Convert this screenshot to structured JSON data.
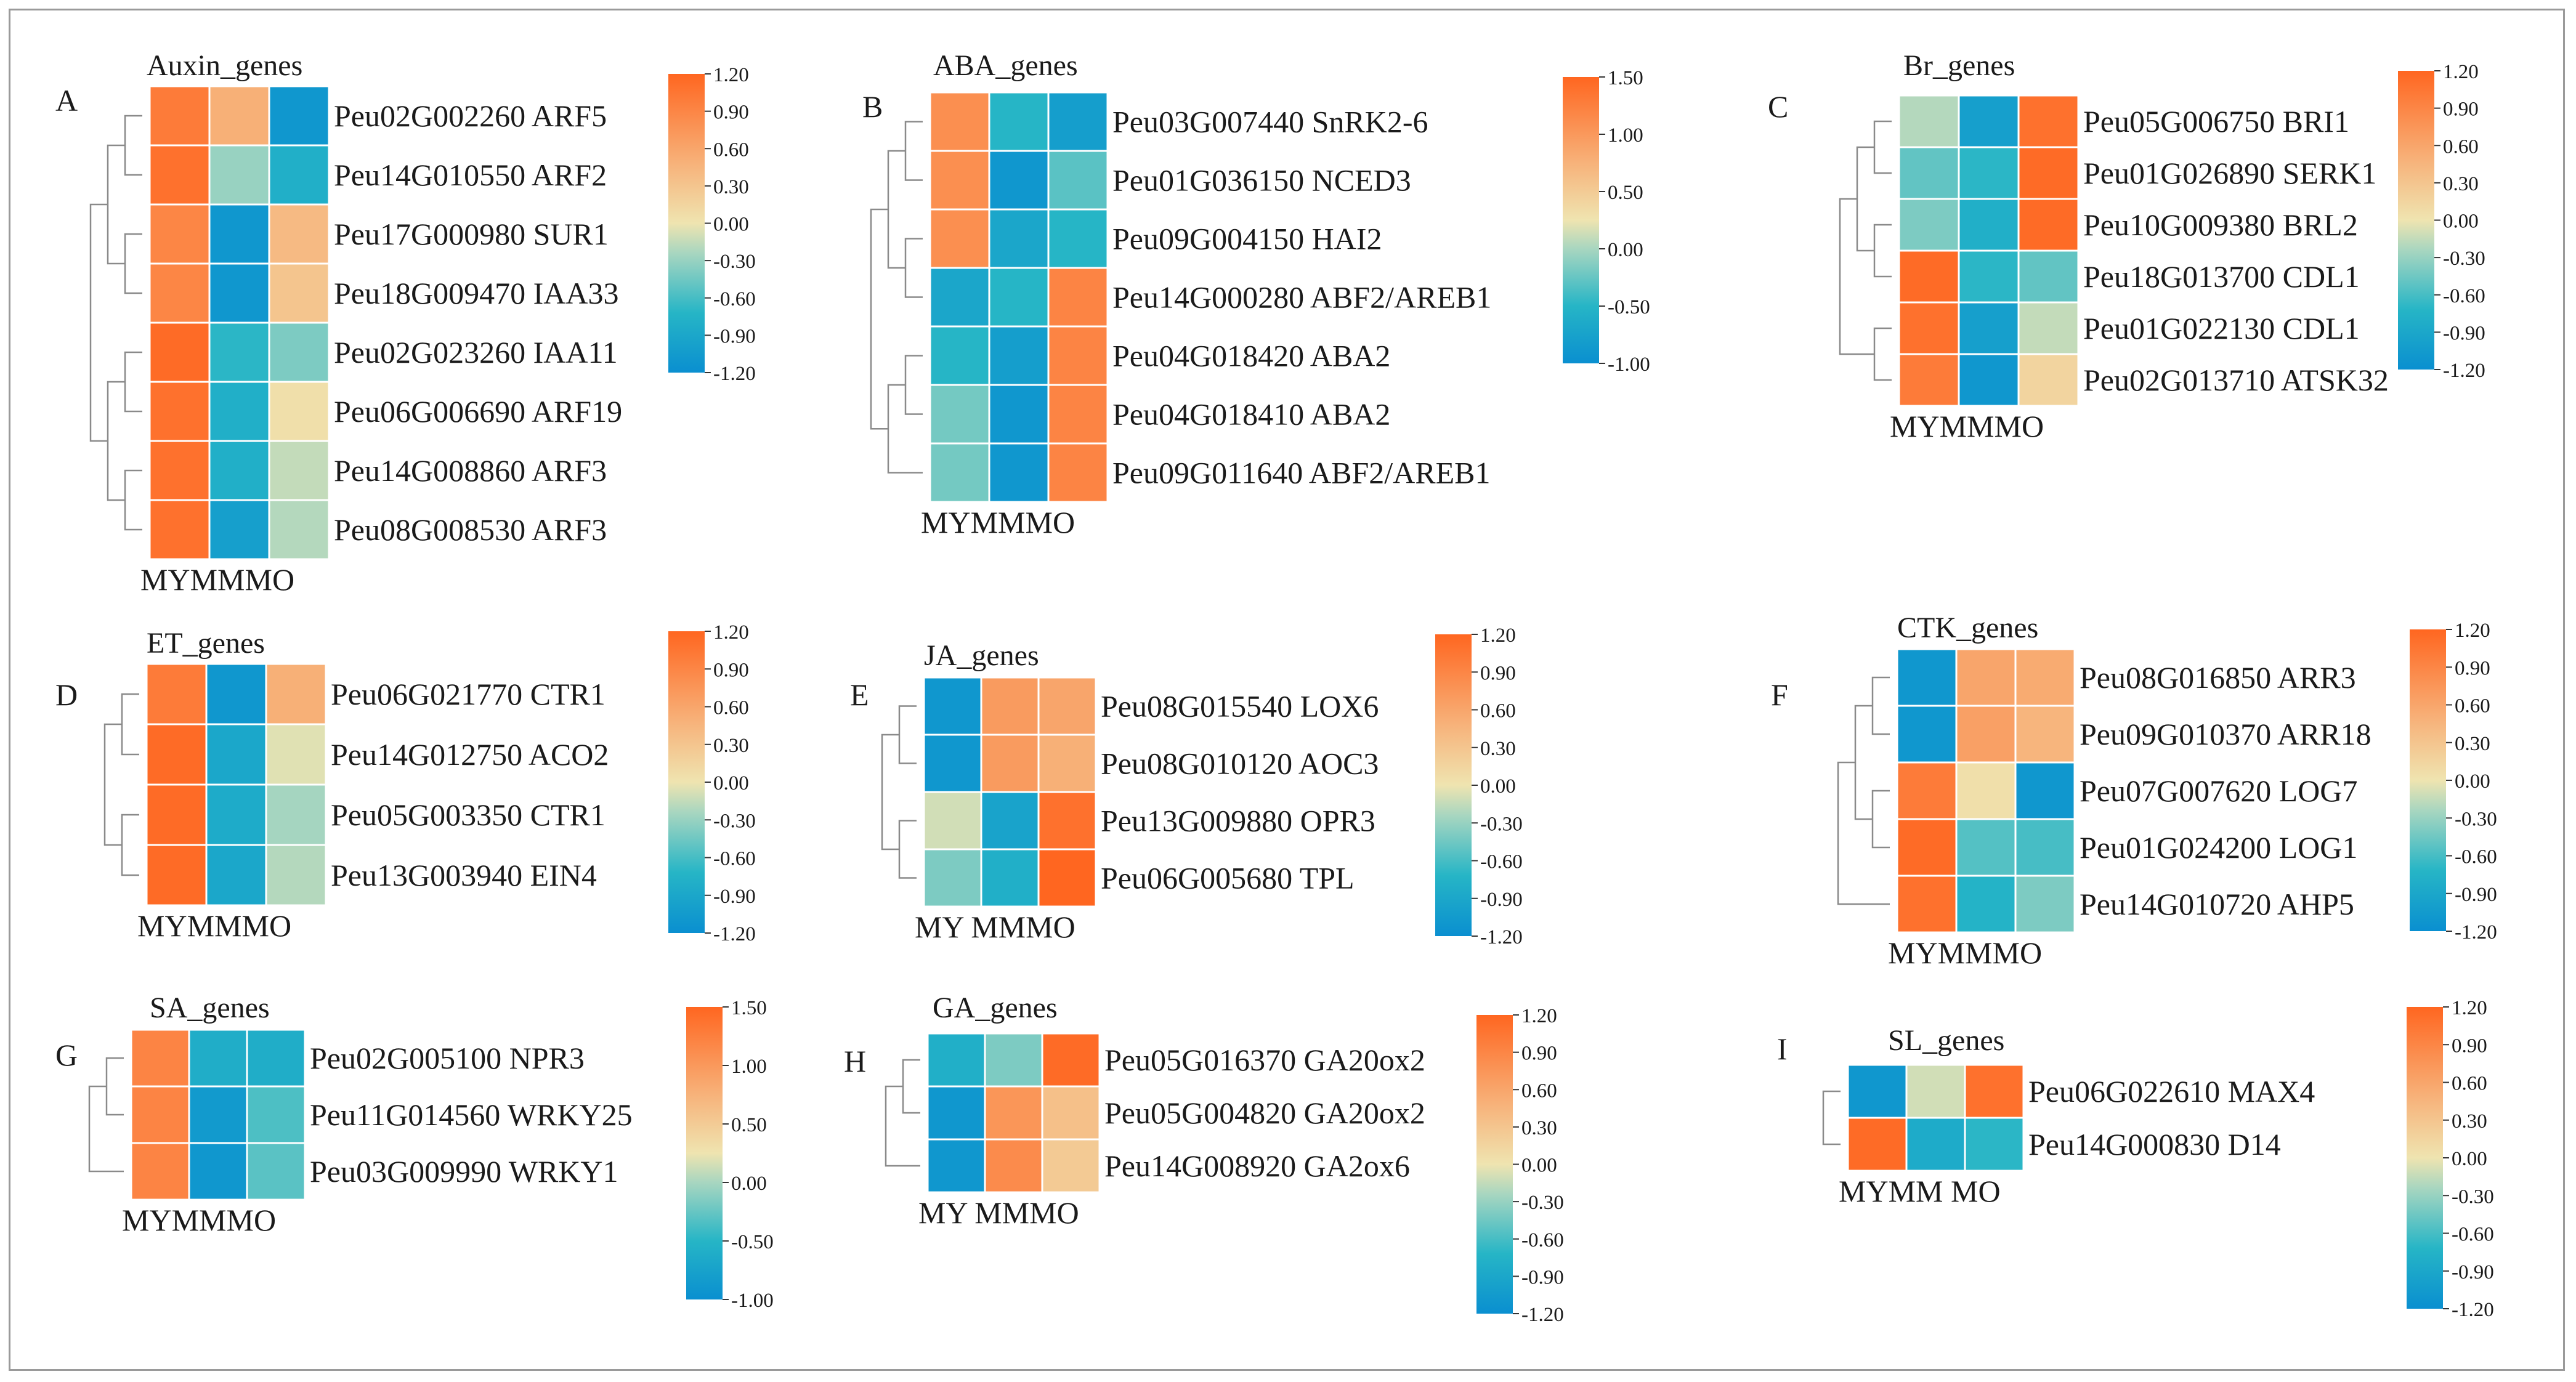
{
  "figure": {
    "colorscale": [
      "#0a8fd0",
      "#26b5c6",
      "#a8d6c0",
      "#efe4b0",
      "#f7b27a",
      "#ff6620"
    ]
  },
  "chart_data": [
    {
      "type": "heatmap",
      "panel": "A",
      "title": "Auxin_genes",
      "columns": [
        "MY",
        "MM",
        "MO"
      ],
      "rows": [
        "Peu02G002260 ARF5",
        "Peu14G010550 ARF2",
        "Peu17G000980 SUR1",
        "Peu18G009470 IAA33",
        "Peu02G023260 IAA11",
        "Peu06G006690 ARF19",
        "Peu14G008860 ARF3",
        "Peu08G008530 ARF3"
      ],
      "values": [
        [
          1.0,
          0.5,
          -1.1
        ],
        [
          1.1,
          -0.3,
          -0.8
        ],
        [
          0.9,
          -1.1,
          0.4
        ],
        [
          0.9,
          -1.1,
          0.3
        ],
        [
          1.15,
          -0.7,
          -0.4
        ],
        [
          1.1,
          -0.8,
          0.05
        ],
        [
          1.1,
          -0.8,
          -0.15
        ],
        [
          1.1,
          -1.0,
          -0.2
        ]
      ],
      "colorbar": {
        "range": [
          -1.2,
          1.2
        ],
        "ticks": [
          "1.20",
          "0.90",
          "0.60",
          "0.30",
          "0.00",
          "-0.30",
          "-0.60",
          "-0.90",
          "-1.20"
        ]
      },
      "column_label_text": "MYMMMO"
    },
    {
      "type": "heatmap",
      "panel": "B",
      "title": "ABA_genes",
      "columns": [
        "MY",
        "MM",
        "MO"
      ],
      "rows": [
        "Peu03G007440 SnRK2-6",
        "Peu01G036150 NCED3",
        "Peu09G004150 HAI2",
        "Peu14G000280 ABF2/AREB1",
        "Peu04G018420 ABA2",
        "Peu04G018410 ABA2",
        "Peu09G011640 ABF2/AREB1"
      ],
      "values": [
        [
          1.1,
          -0.5,
          -0.8
        ],
        [
          1.1,
          -0.9,
          -0.3
        ],
        [
          1.1,
          -0.7,
          -0.5
        ],
        [
          -0.7,
          -0.5,
          1.2
        ],
        [
          -0.5,
          -0.8,
          1.2
        ],
        [
          -0.2,
          -0.9,
          1.2
        ],
        [
          -0.2,
          -0.9,
          1.2
        ]
      ],
      "colorbar": {
        "range": [
          -1.0,
          1.5
        ],
        "ticks": [
          "1.50",
          "1.00",
          "0.50",
          "0.00",
          "-0.50",
          "-1.00"
        ]
      },
      "column_label_text": "MYMMMO"
    },
    {
      "type": "heatmap",
      "panel": "C",
      "title": "Br_genes",
      "columns": [
        "MY",
        "MM",
        "MO"
      ],
      "rows": [
        "Peu05G006750 BRI1",
        "Peu01G026890 SERK1",
        "Peu10G009380 BRL2",
        "Peu18G013700 CDL1",
        "Peu01G022130 CDL1",
        "Peu02G013710 ATSK32"
      ],
      "values": [
        [
          -0.2,
          -1.0,
          1.1
        ],
        [
          -0.5,
          -0.7,
          1.15
        ],
        [
          -0.4,
          -0.8,
          1.15
        ],
        [
          1.15,
          -0.7,
          -0.5
        ],
        [
          1.1,
          -1.0,
          -0.15
        ],
        [
          1.0,
          -1.1,
          0.15
        ]
      ],
      "colorbar": {
        "range": [
          -1.2,
          1.2
        ],
        "ticks": [
          "1.20",
          "0.90",
          "0.60",
          "0.30",
          "0.00",
          "-0.30",
          "-0.60",
          "-0.90",
          "-1.20"
        ]
      },
      "column_label_text": "MYMMMO"
    },
    {
      "type": "heatmap",
      "panel": "D",
      "title": "ET_genes",
      "columns": [
        "MY",
        "MM",
        "MO"
      ],
      "rows": [
        "Peu06G021770 CTR1",
        "Peu14G012750 ACO2",
        "Peu05G003350 CTR1",
        "Peu13G003940 EIN4"
      ],
      "values": [
        [
          1.0,
          -1.1,
          0.5
        ],
        [
          1.15,
          -0.9,
          -0.05
        ],
        [
          1.15,
          -0.85,
          -0.25
        ],
        [
          1.15,
          -0.9,
          -0.2
        ]
      ],
      "colorbar": {
        "range": [
          -1.2,
          1.2
        ],
        "ticks": [
          "1.20",
          "0.90",
          "0.60",
          "0.30",
          "0.00",
          "-0.30",
          "-0.60",
          "-0.90",
          "-1.20"
        ]
      },
      "column_label_text": "MYMMMO"
    },
    {
      "type": "heatmap",
      "panel": "E",
      "title": "JA_genes",
      "columns": [
        "MY",
        "MM",
        "MO"
      ],
      "rows": [
        "Peu08G015540 LOX6",
        "Peu08G010120 AOC3",
        "Peu13G009880 OPR3",
        "Peu06G005680 TPL"
      ],
      "values": [
        [
          -1.1,
          0.7,
          0.6
        ],
        [
          -1.1,
          0.7,
          0.5
        ],
        [
          -0.1,
          -0.95,
          1.1
        ],
        [
          -0.4,
          -0.8,
          1.2
        ]
      ],
      "colorbar": {
        "range": [
          -1.2,
          1.2
        ],
        "ticks": [
          "1.20",
          "0.90",
          "0.60",
          "0.30",
          "0.00",
          "-0.30",
          "-0.60",
          "-0.90",
          "-1.20"
        ]
      },
      "column_label_text": "MY MMMO"
    },
    {
      "type": "heatmap",
      "panel": "F",
      "title": "CTK_genes",
      "columns": [
        "MY",
        "MM",
        "MO"
      ],
      "rows": [
        "Peu08G016850 ARR3",
        "Peu09G010370 ARR18",
        "Peu07G007620 LOG7",
        "Peu01G024200 LOG1",
        "Peu14G010720 AHP5"
      ],
      "values": [
        [
          -1.1,
          0.6,
          0.55
        ],
        [
          -1.1,
          0.65,
          0.45
        ],
        [
          1.0,
          0.05,
          -1.1
        ],
        [
          1.15,
          -0.55,
          -0.6
        ],
        [
          1.1,
          -0.75,
          -0.4
        ]
      ],
      "colorbar": {
        "range": [
          -1.2,
          1.2
        ],
        "ticks": [
          "1.20",
          "0.90",
          "0.60",
          "0.30",
          "0.00",
          "-0.30",
          "-0.60",
          "-0.90",
          "-1.20"
        ]
      },
      "column_label_text": "MYMMMO"
    },
    {
      "type": "heatmap",
      "panel": "G",
      "title": "SA_genes",
      "columns": [
        "MY",
        "MM",
        "MO"
      ],
      "rows": [
        "Peu02G005100 NPR3",
        "Peu11G014560 WRKY25",
        "Peu03G009990 WRKY1"
      ],
      "values": [
        [
          1.2,
          -0.6,
          -0.6
        ],
        [
          1.2,
          -0.85,
          -0.35
        ],
        [
          1.2,
          -0.9,
          -0.3
        ]
      ],
      "colorbar": {
        "range": [
          -1.0,
          1.5
        ],
        "ticks": [
          "1.50",
          "1.00",
          "0.50",
          "0.00",
          "-0.50",
          "-1.00"
        ]
      },
      "column_label_text": "MYMMMO"
    },
    {
      "type": "heatmap",
      "panel": "H",
      "title": "GA_genes",
      "columns": [
        "MY",
        "MM",
        "MO"
      ],
      "rows": [
        "Peu05G016370 GA20ox2",
        "Peu05G004820 GA20ox2",
        "Peu14G008920 GA2ox6"
      ],
      "values": [
        [
          -0.8,
          -0.4,
          1.15
        ],
        [
          -1.1,
          0.75,
          0.35
        ],
        [
          -1.1,
          0.85,
          0.25
        ]
      ],
      "colorbar": {
        "range": [
          -1.2,
          1.2
        ],
        "ticks": [
          "1.20",
          "0.90",
          "0.60",
          "0.30",
          "0.00",
          "-0.30",
          "-0.60",
          "-0.90",
          "-1.20"
        ]
      },
      "column_label_text": "MY MMMO"
    },
    {
      "type": "heatmap",
      "panel": "I",
      "title": "SL_genes",
      "columns": [
        "MY",
        "MM",
        "MO"
      ],
      "rows": [
        "Peu06G022610 MAX4",
        "Peu14G000830 D14"
      ],
      "values": [
        [
          -1.1,
          -0.1,
          1.1
        ],
        [
          1.15,
          -0.85,
          -0.7
        ]
      ],
      "colorbar": {
        "range": [
          -1.2,
          1.2
        ],
        "ticks": [
          "1.20",
          "0.90",
          "0.60",
          "0.30",
          "0.00",
          "-0.30",
          "-0.60",
          "-0.90",
          "-1.20"
        ]
      },
      "column_label_text": "MYMM MO"
    }
  ]
}
